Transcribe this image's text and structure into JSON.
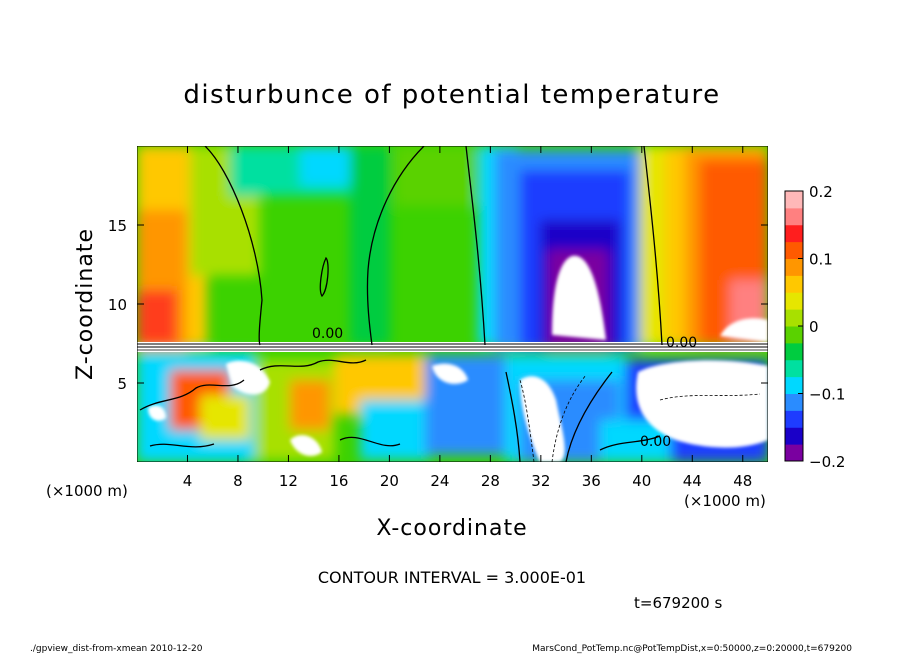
{
  "chart_data": {
    "type": "heatmap",
    "title": "disturbunce of potential temperature",
    "xlabel": "X-coordinate",
    "ylabel": "Z-coordinate",
    "x_unit": "(×1000 m)",
    "y_unit": "(×1000 m)",
    "xlim": [
      0,
      50
    ],
    "ylim": [
      0,
      20
    ],
    "x_ticks": [
      4,
      8,
      12,
      16,
      20,
      24,
      28,
      32,
      36,
      40,
      44,
      48
    ],
    "y_ticks": [
      5,
      10,
      15
    ],
    "colorbar": {
      "range": [
        -0.2,
        0.2
      ],
      "tick_values": [
        0.2,
        0.1,
        0,
        -0.1,
        -0.2
      ],
      "tick_labels": [
        "0.2",
        "0.1",
        "0",
        "−0.1",
        "−0.2"
      ],
      "colors": [
        "#7a00a0",
        "#1a00c8",
        "#1e3cff",
        "#2a8cff",
        "#00d8ff",
        "#00e0a0",
        "#00cc40",
        "#5ad200",
        "#a8e000",
        "#e6e600",
        "#ffc800",
        "#ff9600",
        "#ff5a00",
        "#ff1e1e",
        "#ff8080",
        "#ffb8b8"
      ]
    },
    "annotations": {
      "contour_label": "0.00",
      "contour_interval": "CONTOUR INTERVAL = 3.000E-01",
      "time": "t=679200 s"
    },
    "grid": false
  },
  "footer": {
    "left": "./gpview_dist-from-xmean  2010-12-20",
    "right": "MarsCond_PotTemp.nc@PotTempDist,x=0:50000,z=0:20000,t=679200"
  }
}
